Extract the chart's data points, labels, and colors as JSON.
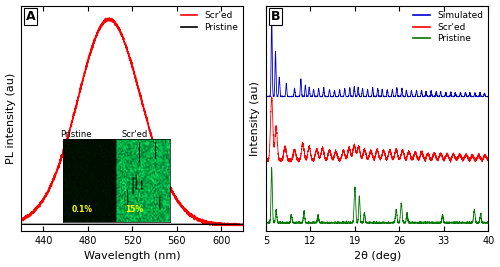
{
  "panel_A": {
    "label": "A",
    "xlabel": "Wavelength (nm)",
    "ylabel": "PL intensity (au)",
    "xlim": [
      420,
      620
    ],
    "ylim": [
      -0.03,
      1.15
    ],
    "xticks": [
      440,
      480,
      520,
      560,
      600
    ],
    "legend_scred": "Scr'ed",
    "legend_pristine": "Pristine",
    "scred_color": "#ff0000",
    "pristine_color": "#000000",
    "inset_labels": [
      "Pristine",
      "Scr'ed"
    ],
    "inset_text": [
      "0.1%",
      "15%"
    ],
    "inset_text_color": "#ffff00"
  },
  "panel_B": {
    "label": "B",
    "xlabel": "2θ (deg)",
    "ylabel": "Intensity (au)",
    "xlim": [
      5,
      40
    ],
    "xticks": [
      5,
      12,
      19,
      26,
      33,
      40
    ],
    "legend_simulated": "Simulated",
    "legend_scred": "Scr'ed",
    "legend_pristine": "Pristine",
    "simulated_color": "#0000cc",
    "scred_color": "#ff0000",
    "pristine_color": "#007700"
  },
  "background_color": "#ffffff",
  "figsize": [
    5.0,
    2.67
  ],
  "dpi": 100
}
